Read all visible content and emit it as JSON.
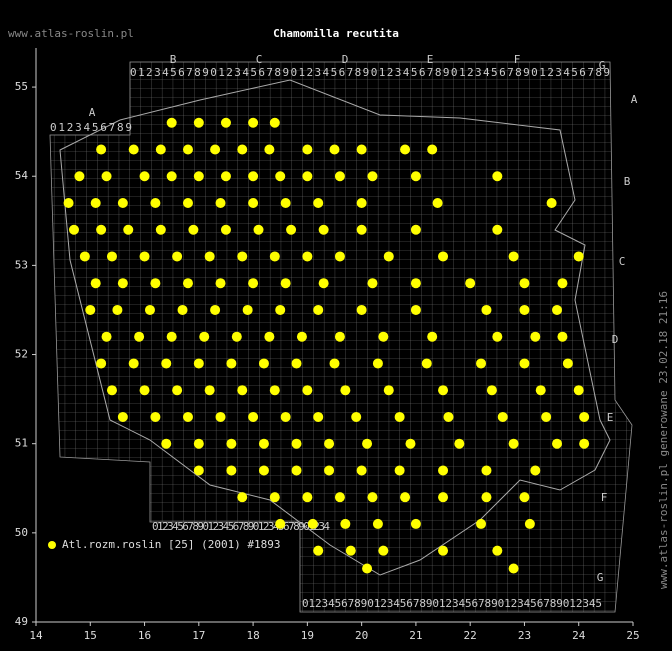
{
  "header": {
    "site": "www.atlas-roslin.pl",
    "title": "Chamomilla recutita"
  },
  "footer": {
    "credit": "www.atlas-roslin.pl generowane 23.02.18 21:16"
  },
  "grid_labels": {
    "columns": [
      "A",
      "B",
      "C",
      "D",
      "E",
      "F",
      "G"
    ],
    "rows": [
      "A",
      "B",
      "C",
      "D",
      "E",
      "F",
      "G"
    ],
    "top_digits": "012345678901234567890123456789012345678901234567890123456789",
    "a_digits": "0123456789",
    "bottom_left_digits": "01234567890123456789012345678901234",
    "bottom_right_digits": "0123456789012345678901234567890123456789012345"
  },
  "chart_data": {
    "type": "scatter",
    "xlim": [
      14,
      25
    ],
    "ylim": [
      49,
      55.5
    ],
    "xticks": [
      14,
      15,
      16,
      17,
      18,
      19,
      20,
      21,
      22,
      23,
      24,
      25
    ],
    "yticks": [
      49,
      50,
      51,
      52,
      53,
      54,
      55
    ],
    "legend": "lower left",
    "series": [
      {
        "name": "Atl.rozm.roslin [25] (2001) #1893",
        "color": "#ffff00",
        "x": [
          16.5,
          17,
          17.5,
          18,
          18.4,
          15.2,
          15.8,
          16.3,
          16.8,
          17.3,
          17.8,
          18.3,
          19,
          19.5,
          20,
          20.8,
          21.3,
          14.8,
          15.3,
          16,
          16.5,
          17,
          17.5,
          18,
          18.5,
          19,
          19.6,
          20.2,
          21,
          22.5,
          14.6,
          15.1,
          15.6,
          16.2,
          16.8,
          17.4,
          18,
          18.6,
          19.2,
          20,
          21.4,
          23.5,
          14.7,
          15.2,
          15.7,
          16.3,
          16.9,
          17.5,
          18.1,
          18.7,
          19.3,
          20,
          21,
          22.5,
          14.9,
          15.4,
          16,
          16.6,
          17.2,
          17.8,
          18.4,
          19,
          19.6,
          20.5,
          21.5,
          22.8,
          24,
          15.1,
          15.6,
          16.2,
          16.8,
          17.4,
          18,
          18.6,
          19.3,
          20.2,
          21,
          22,
          23,
          23.7,
          15,
          15.5,
          16.1,
          16.7,
          17.3,
          17.9,
          18.5,
          19.2,
          20,
          21,
          22.3,
          23,
          23.6,
          15.3,
          15.9,
          16.5,
          17.1,
          17.7,
          18.3,
          18.9,
          19.6,
          20.4,
          21.3,
          22.5,
          23.2,
          23.7,
          15.2,
          15.8,
          16.4,
          17,
          17.6,
          18.2,
          18.8,
          19.5,
          20.3,
          21.2,
          22.2,
          23,
          23.8,
          15.4,
          16,
          16.6,
          17.2,
          17.8,
          18.4,
          19,
          19.7,
          20.5,
          21.5,
          22.4,
          23.3,
          24,
          15.6,
          16.2,
          16.8,
          17.4,
          18,
          18.6,
          19.2,
          19.9,
          20.7,
          21.6,
          22.6,
          23.4,
          24.1,
          16.4,
          17,
          17.6,
          18.2,
          18.8,
          19.4,
          20.1,
          20.9,
          21.8,
          22.8,
          23.6,
          24.1,
          17,
          17.6,
          18.2,
          18.8,
          19.4,
          20,
          20.7,
          21.5,
          22.3,
          23.2,
          17.8,
          18.4,
          19,
          19.6,
          20.2,
          20.8,
          21.5,
          22.3,
          23,
          18.5,
          19.1,
          19.7,
          20.3,
          21,
          22.2,
          23.1,
          19.2,
          19.8,
          20.4,
          21.5,
          22.5,
          20.1,
          22.8
        ],
        "y": [
          54.6,
          54.6,
          54.6,
          54.6,
          54.6,
          54.3,
          54.3,
          54.3,
          54.3,
          54.3,
          54.3,
          54.3,
          54.3,
          54.3,
          54.3,
          54.3,
          54.3,
          54,
          54,
          54,
          54,
          54,
          54,
          54,
          54,
          54,
          54,
          54,
          54,
          54,
          53.7,
          53.7,
          53.7,
          53.7,
          53.7,
          53.7,
          53.7,
          53.7,
          53.7,
          53.7,
          53.7,
          53.7,
          53.4,
          53.4,
          53.4,
          53.4,
          53.4,
          53.4,
          53.4,
          53.4,
          53.4,
          53.4,
          53.4,
          53.4,
          53.1,
          53.1,
          53.1,
          53.1,
          53.1,
          53.1,
          53.1,
          53.1,
          53.1,
          53.1,
          53.1,
          53.1,
          53.1,
          52.8,
          52.8,
          52.8,
          52.8,
          52.8,
          52.8,
          52.8,
          52.8,
          52.8,
          52.8,
          52.8,
          52.8,
          52.8,
          52.5,
          52.5,
          52.5,
          52.5,
          52.5,
          52.5,
          52.5,
          52.5,
          52.5,
          52.5,
          52.5,
          52.5,
          52.5,
          52.2,
          52.2,
          52.2,
          52.2,
          52.2,
          52.2,
          52.2,
          52.2,
          52.2,
          52.2,
          52.2,
          52.2,
          52.2,
          51.9,
          51.9,
          51.9,
          51.9,
          51.9,
          51.9,
          51.9,
          51.9,
          51.9,
          51.9,
          51.9,
          51.9,
          51.9,
          51.6,
          51.6,
          51.6,
          51.6,
          51.6,
          51.6,
          51.6,
          51.6,
          51.6,
          51.6,
          51.6,
          51.6,
          51.6,
          51.3,
          51.3,
          51.3,
          51.3,
          51.3,
          51.3,
          51.3,
          51.3,
          51.3,
          51.3,
          51.3,
          51.3,
          51.3,
          51,
          51,
          51,
          51,
          51,
          51,
          51,
          51,
          51,
          51,
          51,
          51,
          50.7,
          50.7,
          50.7,
          50.7,
          50.7,
          50.7,
          50.7,
          50.7,
          50.7,
          50.7,
          50.4,
          50.4,
          50.4,
          50.4,
          50.4,
          50.4,
          50.4,
          50.4,
          50.4,
          50.1,
          50.1,
          50.1,
          50.1,
          50.1,
          50.1,
          50.1,
          49.8,
          49.8,
          49.8,
          49.8,
          49.8,
          49.6,
          49.6
        ]
      }
    ]
  }
}
